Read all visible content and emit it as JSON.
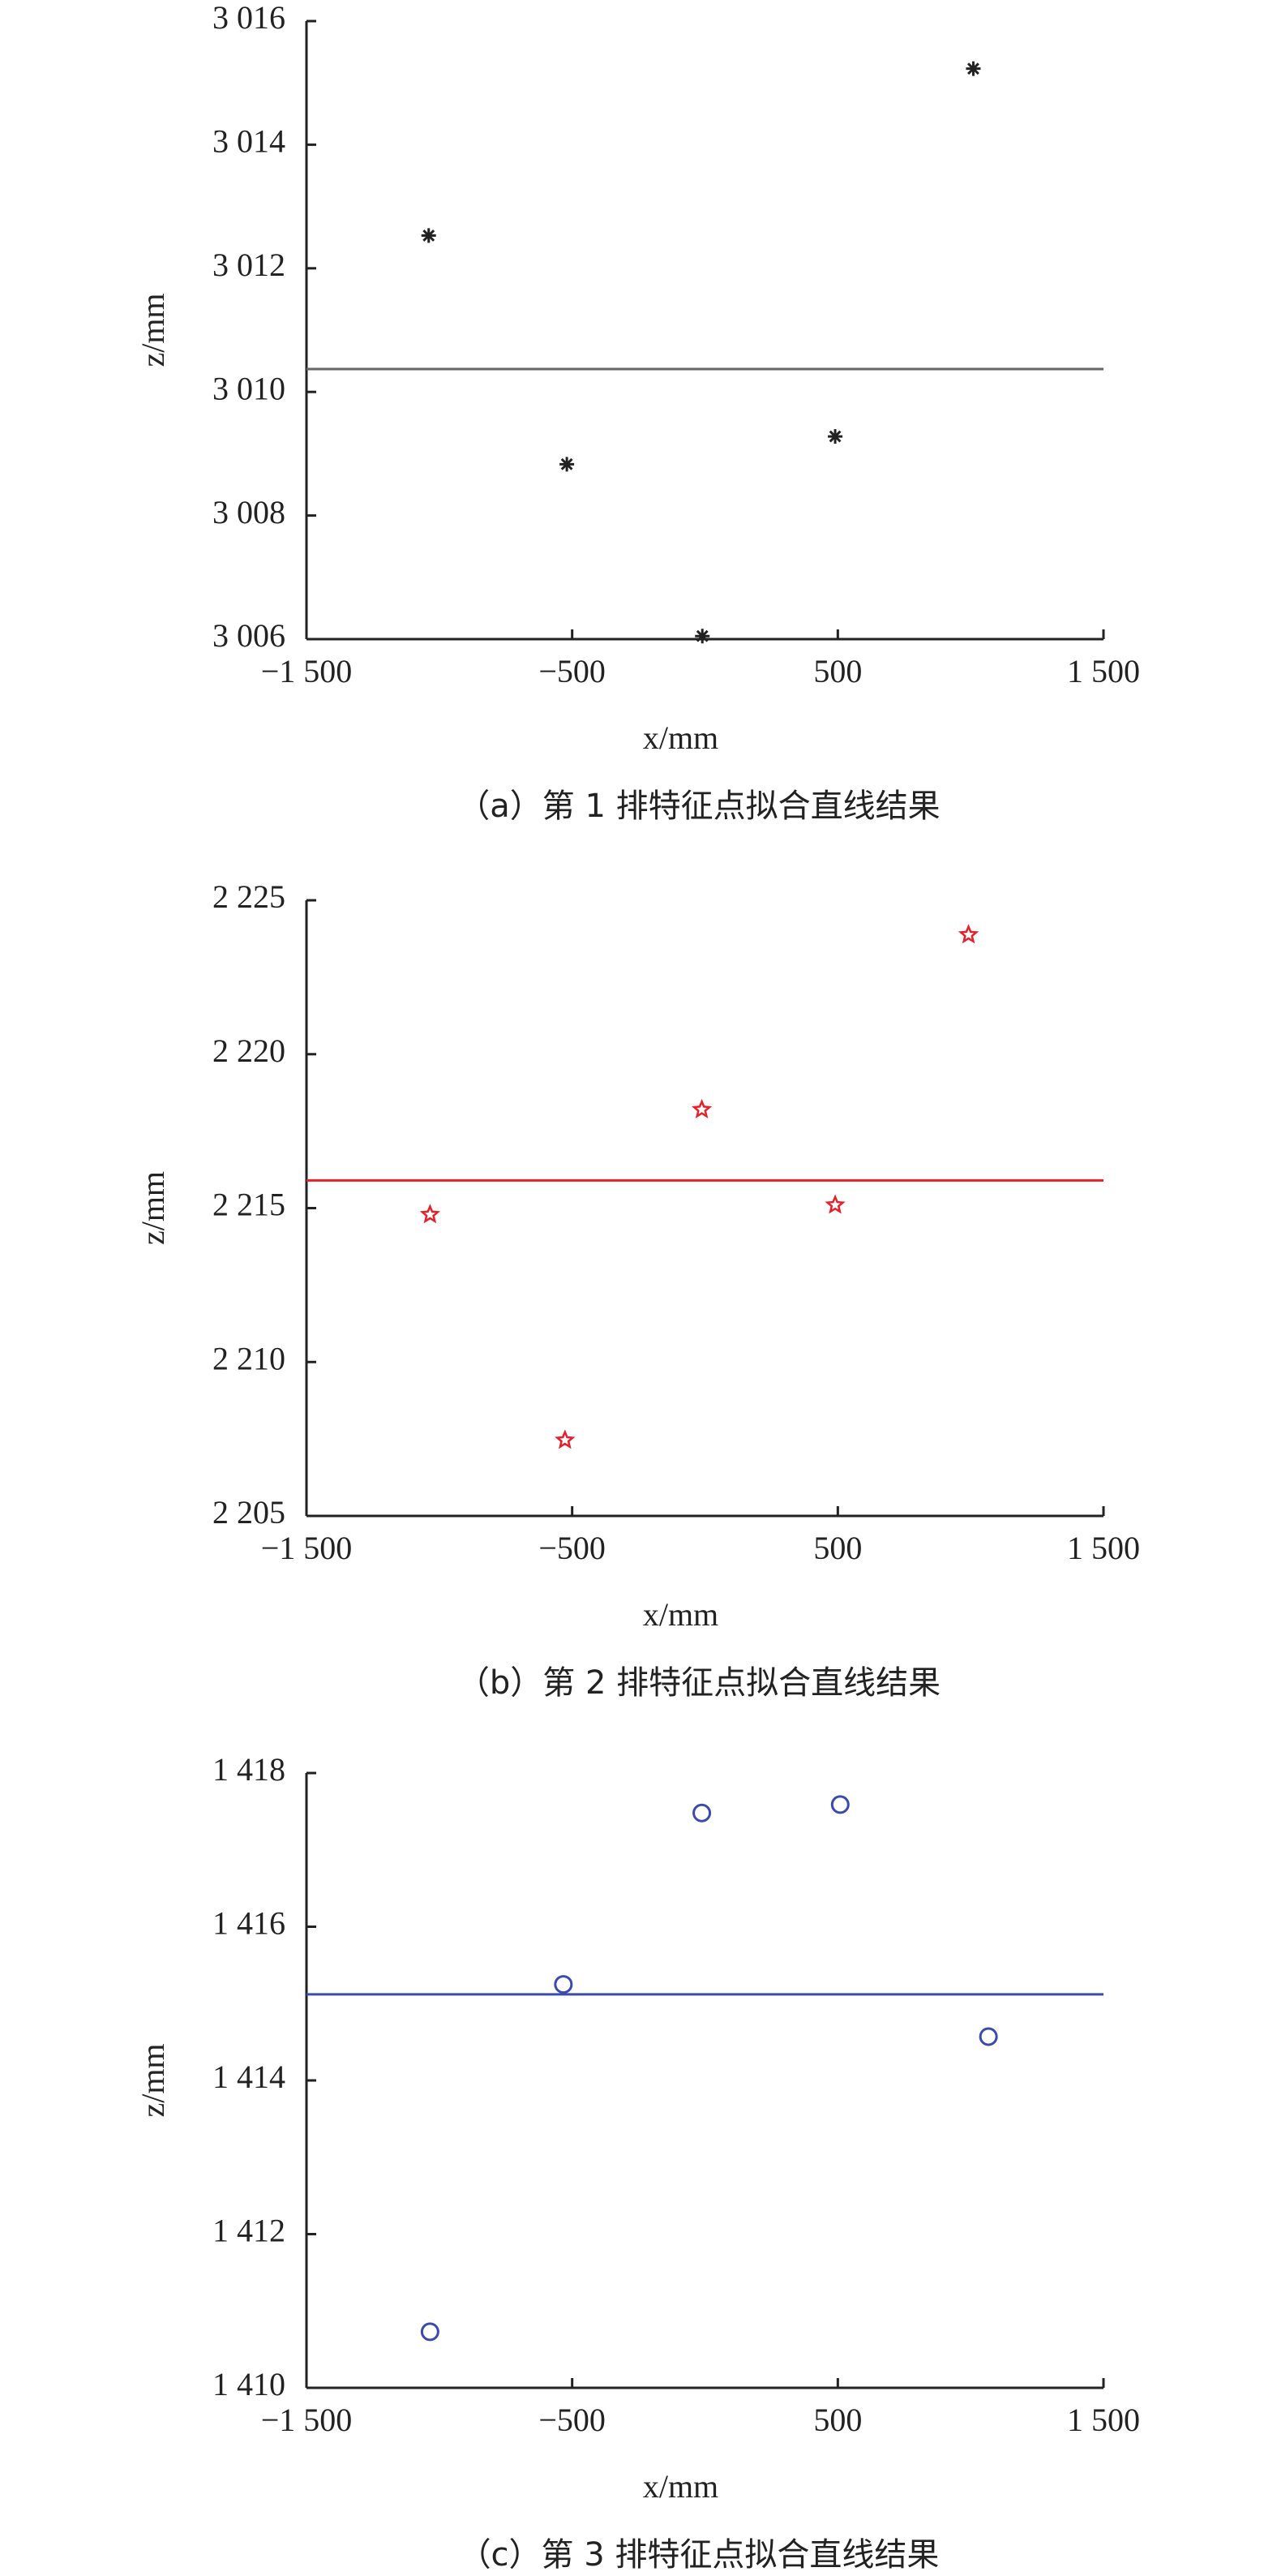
{
  "chart_data": [
    {
      "type": "scatter",
      "marker": "asterisk",
      "color": "#222222",
      "line_color": "#666666",
      "caption": "（a）第 1 排特征点拟合直线结果",
      "xlabel": "x/mm",
      "ylabel": "z/mm",
      "x": [
        -1040,
        -520,
        -10,
        490,
        1010
      ],
      "values": [
        3012.53,
        3008.83,
        3006.05,
        3009.28,
        3015.23
      ],
      "fit_z": 3010.37,
      "xlim": [
        -1500,
        1500
      ],
      "xticks": [
        {
          "value": -1500,
          "label": "−1 500"
        },
        {
          "value": -500,
          "label": "−500"
        },
        500,
        {
          "value": 1500,
          "label": "1 500"
        }
      ],
      "ylim": [
        3006,
        3016
      ],
      "yticks": [
        {
          "value": 3006,
          "label": "3 006"
        },
        {
          "value": 3008,
          "label": "3 008"
        },
        {
          "value": 3010,
          "label": "3 010"
        },
        {
          "value": 3012,
          "label": "3 012"
        },
        {
          "value": 3014,
          "label": "3 014"
        },
        {
          "value": 3016,
          "label": "3 016"
        }
      ]
    },
    {
      "type": "scatter",
      "marker": "star",
      "color": "#e8202a",
      "line_color": "#e8202a",
      "caption": "（b）第 2 排特征点拟合直线结果",
      "xlabel": "x/mm",
      "ylabel": "z/mm",
      "x": [
        -1035,
        -527,
        -12,
        490,
        992
      ],
      "values": [
        2214.79,
        2207.46,
        2218.2,
        2215.1,
        2223.88
      ],
      "fit_z": 2215.9,
      "xlim": [
        -1500,
        1500
      ],
      "xticks": [
        {
          "value": -1500,
          "label": "−1 500"
        },
        {
          "value": -500,
          "label": "−500"
        },
        500,
        {
          "value": 1500,
          "label": "1 500"
        }
      ],
      "ylim": [
        2205,
        2225
      ],
      "yticks": [
        {
          "value": 2205,
          "label": "2 205"
        },
        {
          "value": 2210,
          "label": "2 210"
        },
        {
          "value": 2215,
          "label": "2 215"
        },
        {
          "value": 2220,
          "label": "2 220"
        },
        {
          "value": 2225,
          "label": "2 225"
        }
      ]
    },
    {
      "type": "scatter",
      "marker": "circle",
      "color": "#3a4ab0",
      "line_color": "#3a4ab0",
      "caption": "（c）第 3 排特征点拟合直线结果",
      "xlabel": "x/mm",
      "ylabel": "z/mm",
      "x": [
        -1035,
        -533,
        -12,
        509,
        1067
      ],
      "values": [
        1410.73,
        1415.25,
        1417.48,
        1417.59,
        1414.57
      ],
      "fit_z": 1415.12,
      "xlim": [
        -1500,
        1500
      ],
      "xticks": [
        {
          "value": -1500,
          "label": "−1 500"
        },
        {
          "value": -500,
          "label": "−500"
        },
        500,
        {
          "value": 1500,
          "label": "1 500"
        }
      ],
      "ylim": [
        1410,
        1418
      ],
      "yticks": [
        {
          "value": 1410,
          "label": "1 410"
        },
        {
          "value": 1412,
          "label": "1 412"
        },
        {
          "value": 1414,
          "label": "1 414"
        },
        {
          "value": 1416,
          "label": "1 416"
        },
        {
          "value": 1418,
          "label": "1 418"
        }
      ]
    }
  ]
}
